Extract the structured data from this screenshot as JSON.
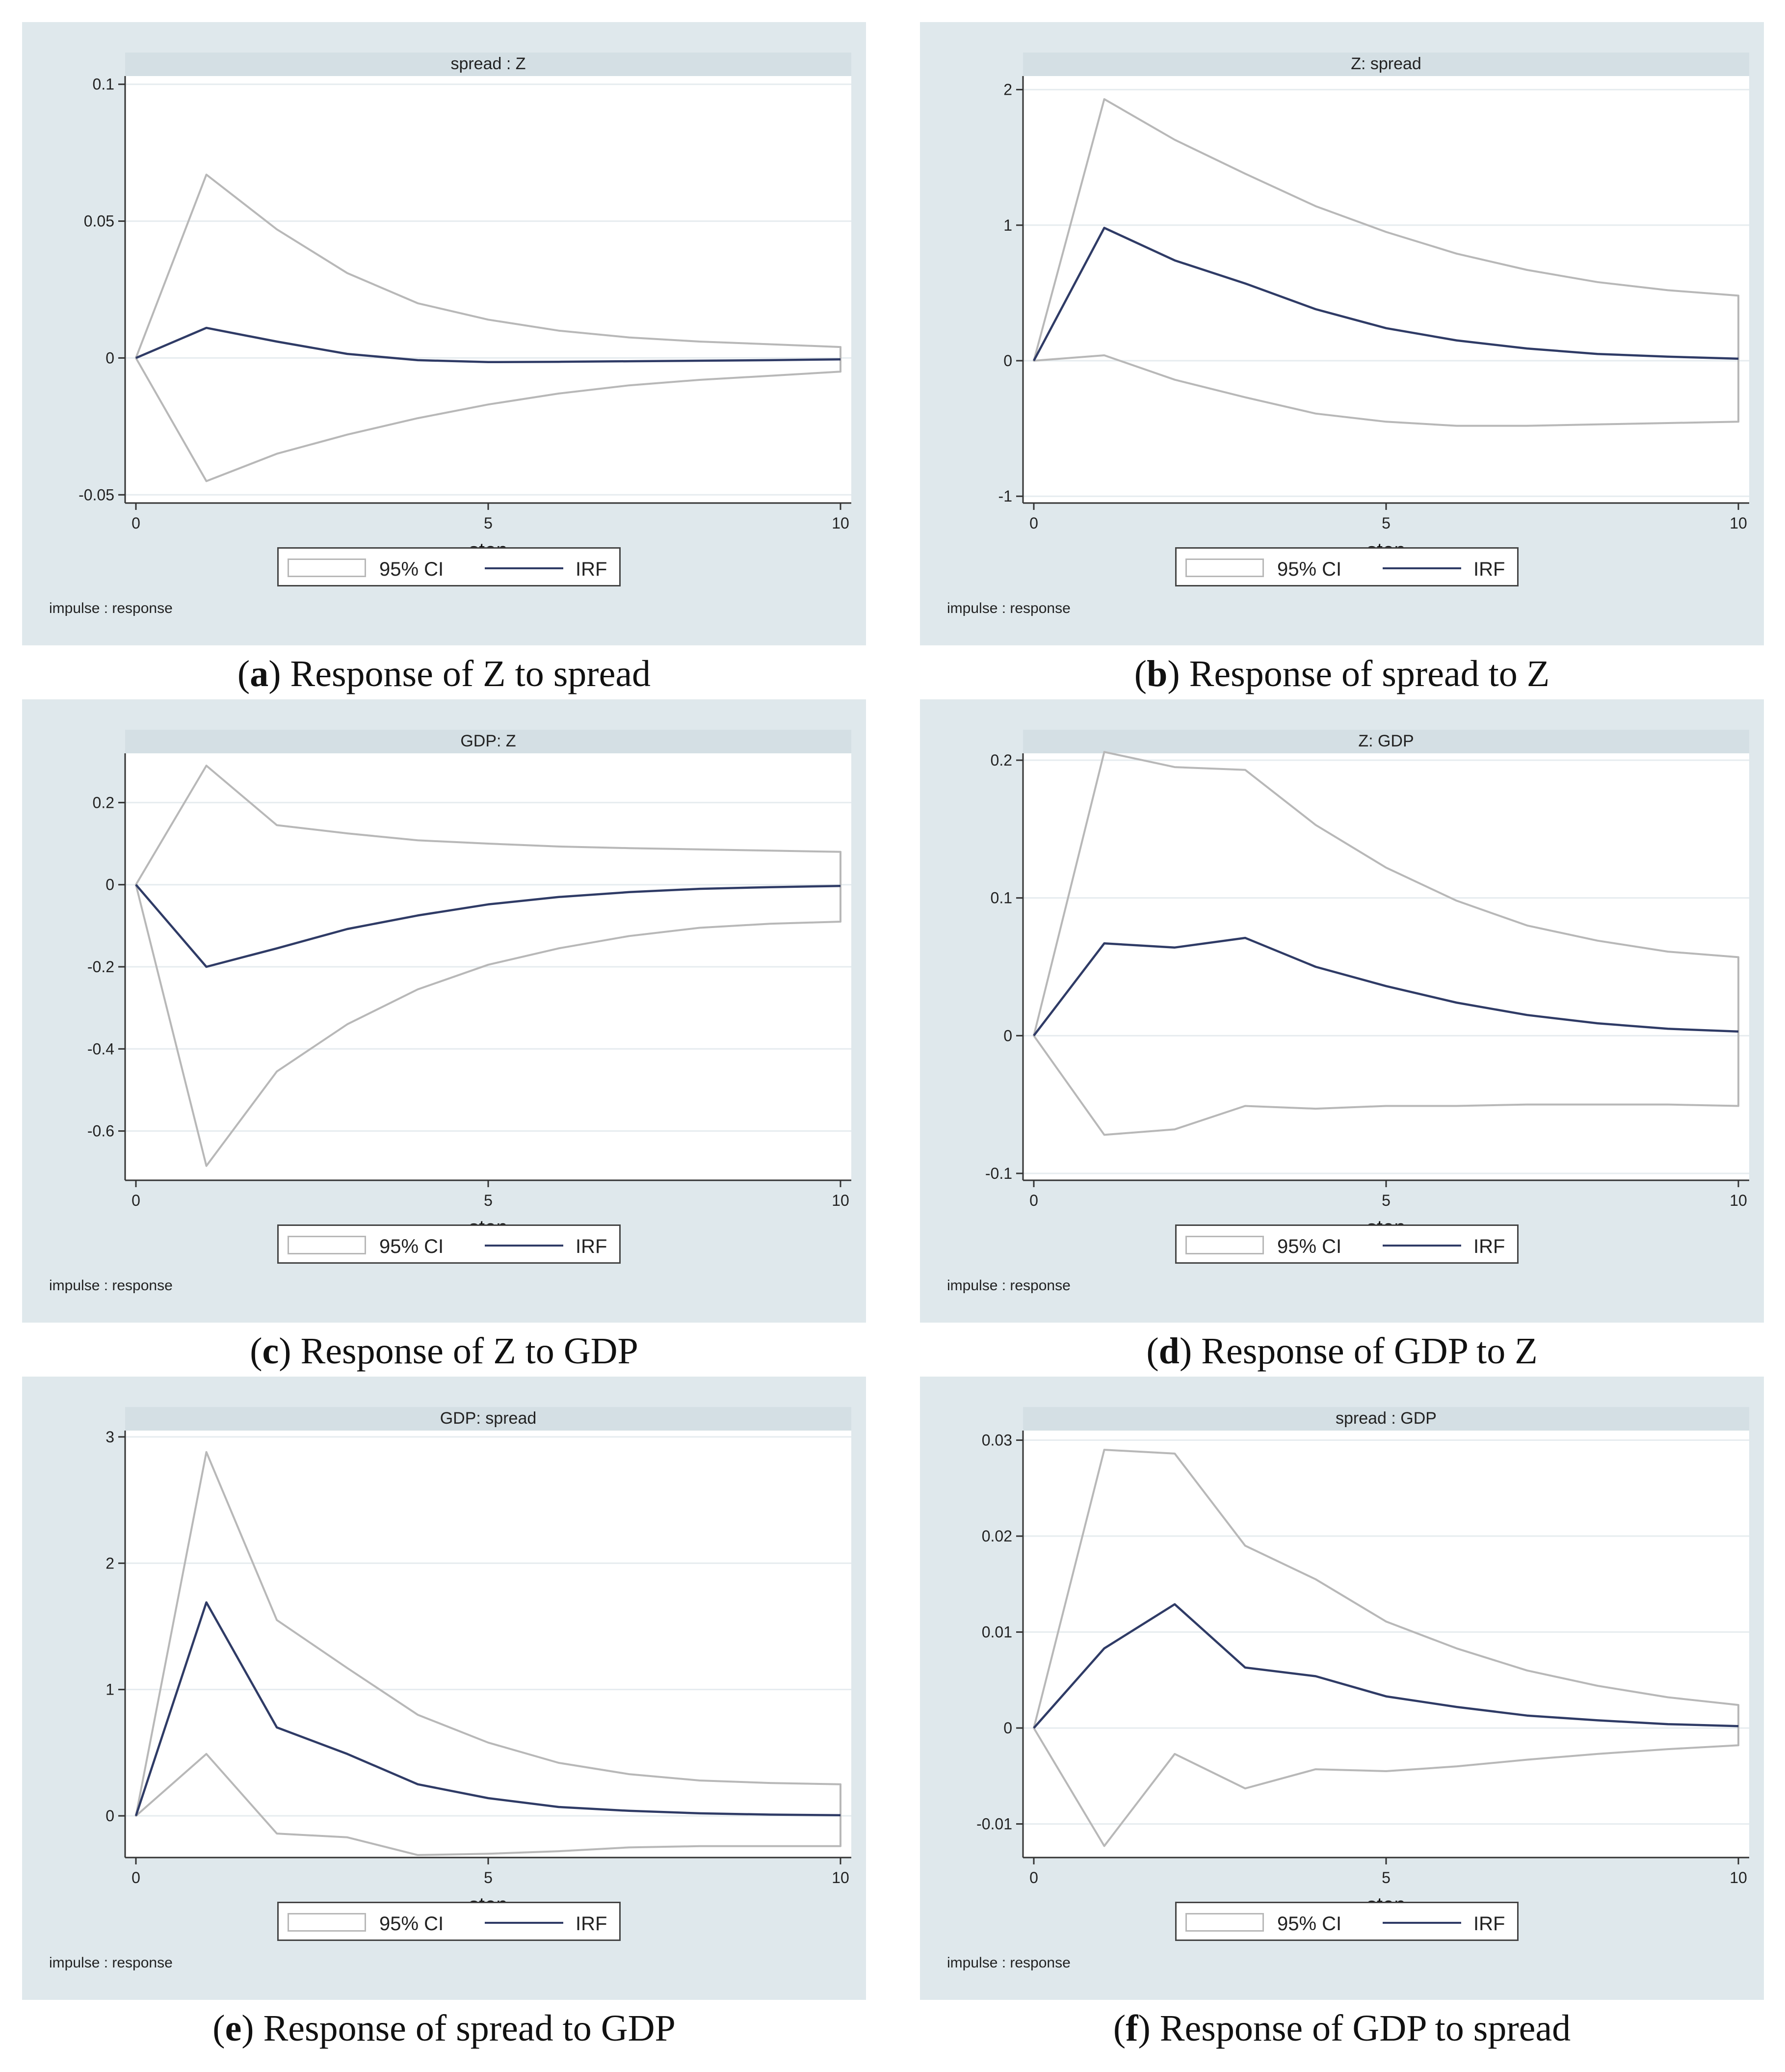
{
  "legend": {
    "ci_label": "95% CI",
    "irf_label": "IRF"
  },
  "impulse_note": "impulse : response",
  "colors": {
    "background": "#dfe8ec",
    "plot": "#ffffff",
    "irf": "#2f3b66",
    "ci": "#b8b8b8",
    "grid": "#e6ecef"
  },
  "chart_data": [
    {
      "type": "line",
      "title": "spread : Z",
      "caption_letter": "a",
      "caption_text": " Response of Z to spread",
      "xlabel": "step",
      "ylabel": "",
      "x": [
        0,
        1,
        2,
        3,
        4,
        5,
        6,
        7,
        8,
        9,
        10
      ],
      "xticks": [
        0,
        5,
        10
      ],
      "ylim": [
        -0.053,
        0.103
      ],
      "yticks": [
        -0.05,
        0,
        0.05,
        0.1
      ],
      "ytick_labels": [
        "-0.05",
        "0",
        "0.05",
        "0.1"
      ],
      "series": [
        {
          "name": "IRF",
          "values": [
            0,
            0.011,
            0.006,
            0.0015,
            -0.0008,
            -0.0015,
            -0.0014,
            -0.0012,
            -0.001,
            -0.0008,
            -0.0005
          ]
        },
        {
          "name": "95% CI upper",
          "values": [
            0,
            0.067,
            0.047,
            0.031,
            0.02,
            0.014,
            0.01,
            0.0075,
            0.006,
            0.005,
            0.004
          ]
        },
        {
          "name": "95% CI lower",
          "values": [
            0,
            -0.045,
            -0.035,
            -0.028,
            -0.022,
            -0.017,
            -0.013,
            -0.01,
            -0.008,
            -0.0065,
            -0.005
          ]
        }
      ]
    },
    {
      "type": "line",
      "title": "Z: spread",
      "caption_letter": "b",
      "caption_text": " Response of spread to Z",
      "xlabel": "step",
      "ylabel": "",
      "x": [
        0,
        1,
        2,
        3,
        4,
        5,
        6,
        7,
        8,
        9,
        10
      ],
      "xticks": [
        0,
        5,
        10
      ],
      "ylim": [
        -1.05,
        2.1
      ],
      "yticks": [
        -1,
        0,
        1,
        2
      ],
      "ytick_labels": [
        "-1",
        "0",
        "1",
        "2"
      ],
      "series": [
        {
          "name": "IRF",
          "values": [
            0,
            0.98,
            0.74,
            0.57,
            0.38,
            0.24,
            0.15,
            0.09,
            0.05,
            0.03,
            0.015
          ]
        },
        {
          "name": "95% CI upper",
          "values": [
            0,
            1.93,
            1.63,
            1.38,
            1.14,
            0.95,
            0.79,
            0.67,
            0.58,
            0.52,
            0.48
          ]
        },
        {
          "name": "95% CI lower",
          "values": [
            0,
            0.04,
            -0.14,
            -0.27,
            -0.39,
            -0.45,
            -0.48,
            -0.48,
            -0.47,
            -0.46,
            -0.45
          ]
        }
      ]
    },
    {
      "type": "line",
      "title": "GDP: Z",
      "caption_letter": "c",
      "caption_text": " Response of Z to GDP",
      "xlabel": "step",
      "ylabel": "",
      "x": [
        0,
        1,
        2,
        3,
        4,
        5,
        6,
        7,
        8,
        9,
        10
      ],
      "xticks": [
        0,
        5,
        10
      ],
      "ylim": [
        -0.72,
        0.32
      ],
      "yticks": [
        -0.6,
        -0.4,
        -0.2,
        0,
        0.2
      ],
      "ytick_labels": [
        "-0.6",
        "-0.4",
        "-0.2",
        "0",
        "0.2"
      ],
      "series": [
        {
          "name": "IRF",
          "values": [
            0,
            -0.2,
            -0.155,
            -0.108,
            -0.075,
            -0.048,
            -0.03,
            -0.018,
            -0.01,
            -0.006,
            -0.003
          ]
        },
        {
          "name": "95% CI upper",
          "values": [
            0,
            0.29,
            0.145,
            0.125,
            0.108,
            0.1,
            0.093,
            0.089,
            0.086,
            0.083,
            0.08
          ]
        },
        {
          "name": "95% CI lower",
          "values": [
            0,
            -0.685,
            -0.455,
            -0.34,
            -0.255,
            -0.195,
            -0.155,
            -0.125,
            -0.105,
            -0.095,
            -0.09
          ]
        }
      ]
    },
    {
      "type": "line",
      "title": "Z: GDP",
      "caption_letter": "d",
      "caption_text": " Response of GDP to Z",
      "xlabel": "step",
      "ylabel": "",
      "x": [
        0,
        1,
        2,
        3,
        4,
        5,
        6,
        7,
        8,
        9,
        10
      ],
      "xticks": [
        0,
        5,
        10
      ],
      "ylim": [
        -0.105,
        0.205
      ],
      "yticks": [
        -0.1,
        0,
        0.1,
        0.2
      ],
      "ytick_labels": [
        "-0.1",
        "0",
        "0.1",
        "0.2"
      ],
      "series": [
        {
          "name": "IRF",
          "values": [
            0,
            0.067,
            0.064,
            0.071,
            0.05,
            0.036,
            0.024,
            0.015,
            0.009,
            0.005,
            0.003
          ]
        },
        {
          "name": "95% CI upper",
          "values": [
            0,
            0.206,
            0.195,
            0.193,
            0.153,
            0.122,
            0.098,
            0.08,
            0.069,
            0.061,
            0.057
          ]
        },
        {
          "name": "95% CI lower",
          "values": [
            0,
            -0.072,
            -0.068,
            -0.051,
            -0.053,
            -0.051,
            -0.051,
            -0.05,
            -0.05,
            -0.05,
            -0.051
          ]
        }
      ]
    },
    {
      "type": "line",
      "title": "GDP: spread",
      "caption_letter": "e",
      "caption_text": " Response of spread to GDP",
      "xlabel": "step",
      "ylabel": "",
      "x": [
        0,
        1,
        2,
        3,
        4,
        5,
        6,
        7,
        8,
        9,
        10
      ],
      "xticks": [
        0,
        5,
        10
      ],
      "ylim": [
        -0.33,
        3.05
      ],
      "yticks": [
        0,
        1,
        2,
        3
      ],
      "ytick_labels": [
        "0",
        "1",
        "2",
        "3"
      ],
      "series": [
        {
          "name": "IRF",
          "values": [
            0,
            1.69,
            0.7,
            0.49,
            0.25,
            0.14,
            0.07,
            0.04,
            0.02,
            0.01,
            0.005
          ]
        },
        {
          "name": "95% CI upper",
          "values": [
            0,
            2.88,
            1.55,
            1.17,
            0.8,
            0.58,
            0.42,
            0.33,
            0.28,
            0.26,
            0.25
          ]
        },
        {
          "name": "95% CI lower",
          "values": [
            0,
            0.49,
            -0.14,
            -0.17,
            -0.31,
            -0.3,
            -0.28,
            -0.25,
            -0.24,
            -0.24,
            -0.24
          ]
        }
      ]
    },
    {
      "type": "line",
      "title": "spread : GDP",
      "caption_letter": "f",
      "caption_text": " Response of GDP to spread",
      "xlabel": "step",
      "ylabel": "",
      "x": [
        0,
        1,
        2,
        3,
        4,
        5,
        6,
        7,
        8,
        9,
        10
      ],
      "xticks": [
        0,
        5,
        10
      ],
      "ylim": [
        -0.0135,
        0.031
      ],
      "yticks": [
        -0.01,
        0,
        0.01,
        0.02,
        0.03
      ],
      "ytick_labels": [
        "-0.01",
        "0",
        "0.01",
        "0.02",
        "0.03"
      ],
      "series": [
        {
          "name": "IRF",
          "values": [
            0,
            0.0083,
            0.0129,
            0.0063,
            0.0054,
            0.0033,
            0.0022,
            0.0013,
            0.0008,
            0.0004,
            0.0002
          ]
        },
        {
          "name": "95% CI upper",
          "values": [
            0,
            0.029,
            0.0286,
            0.019,
            0.0155,
            0.0111,
            0.0083,
            0.006,
            0.0044,
            0.0032,
            0.0024
          ]
        },
        {
          "name": "95% CI lower",
          "values": [
            0,
            -0.0123,
            -0.0027,
            -0.0063,
            -0.0043,
            -0.0045,
            -0.004,
            -0.0033,
            -0.0027,
            -0.0022,
            -0.0018
          ]
        }
      ]
    }
  ]
}
